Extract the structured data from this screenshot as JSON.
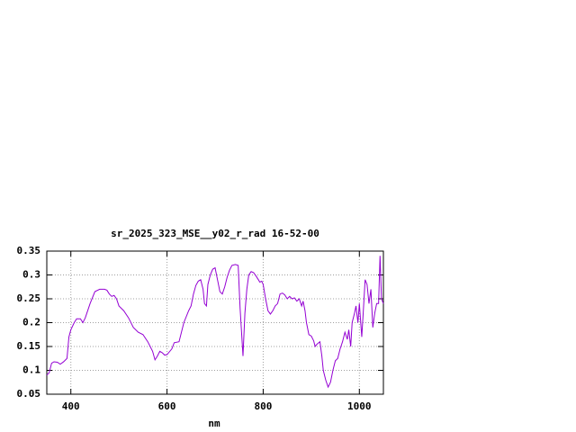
{
  "chart_data": {
    "type": "line",
    "title": "sr_2025_323_MSE__y02_r_rad 16-52-00",
    "x_label": "nm",
    "xlim": [
      350,
      1050
    ],
    "ylim": [
      0.05,
      0.35
    ],
    "xticks": [
      400,
      600,
      800,
      1000
    ],
    "yticks": [
      0.35,
      0.3,
      0.25,
      0.2,
      0.15,
      0.1,
      0.05
    ],
    "grid": true,
    "x": [
      350,
      355,
      360,
      365,
      372,
      378,
      385,
      392,
      396,
      400,
      407,
      412,
      420,
      425,
      430,
      440,
      450,
      460,
      470,
      475,
      480,
      485,
      490,
      495,
      500,
      510,
      520,
      530,
      540,
      550,
      560,
      570,
      575,
      580,
      585,
      590,
      595,
      600,
      610,
      615,
      625,
      635,
      645,
      650,
      655,
      660,
      665,
      670,
      675,
      678,
      682,
      685,
      690,
      695,
      700,
      705,
      710,
      715,
      720,
      725,
      730,
      735,
      742,
      748,
      752,
      755,
      758,
      762,
      766,
      770,
      775,
      780,
      785,
      790,
      793,
      797,
      800,
      805,
      810,
      815,
      820,
      825,
      830,
      835,
      840,
      845,
      850,
      855,
      860,
      865,
      870,
      875,
      880,
      883,
      887,
      890,
      895,
      900,
      905,
      908,
      912,
      918,
      922,
      925,
      930,
      935,
      940,
      945,
      950,
      955,
      960,
      965,
      970,
      975,
      978,
      982,
      985,
      990,
      993,
      997,
      1000,
      1005,
      1008,
      1012,
      1016,
      1020,
      1024,
      1028,
      1032,
      1036,
      1040,
      1043,
      1046,
      1050
    ],
    "series": [
      {
        "color": "#9400d3",
        "values": [
          0.09,
          0.095,
          0.115,
          0.118,
          0.117,
          0.113,
          0.118,
          0.125,
          0.17,
          0.185,
          0.2,
          0.208,
          0.208,
          0.2,
          0.21,
          0.24,
          0.265,
          0.27,
          0.27,
          0.268,
          0.26,
          0.255,
          0.257,
          0.25,
          0.235,
          0.225,
          0.21,
          0.19,
          0.18,
          0.175,
          0.16,
          0.14,
          0.122,
          0.13,
          0.14,
          0.137,
          0.132,
          0.133,
          0.145,
          0.158,
          0.16,
          0.2,
          0.225,
          0.235,
          0.26,
          0.278,
          0.287,
          0.29,
          0.27,
          0.24,
          0.235,
          0.28,
          0.3,
          0.312,
          0.315,
          0.29,
          0.265,
          0.26,
          0.275,
          0.295,
          0.31,
          0.32,
          0.322,
          0.32,
          0.23,
          0.18,
          0.13,
          0.22,
          0.27,
          0.3,
          0.307,
          0.305,
          0.298,
          0.29,
          0.285,
          0.287,
          0.28,
          0.25,
          0.225,
          0.218,
          0.225,
          0.235,
          0.24,
          0.26,
          0.262,
          0.258,
          0.25,
          0.255,
          0.25,
          0.252,
          0.245,
          0.25,
          0.235,
          0.245,
          0.225,
          0.2,
          0.175,
          0.172,
          0.162,
          0.15,
          0.155,
          0.16,
          0.13,
          0.1,
          0.08,
          0.065,
          0.075,
          0.1,
          0.12,
          0.125,
          0.145,
          0.16,
          0.18,
          0.165,
          0.185,
          0.15,
          0.2,
          0.22,
          0.235,
          0.2,
          0.24,
          0.17,
          0.22,
          0.29,
          0.28,
          0.24,
          0.27,
          0.19,
          0.22,
          0.24,
          0.24,
          0.34,
          0.25,
          0.24
        ]
      }
    ]
  }
}
